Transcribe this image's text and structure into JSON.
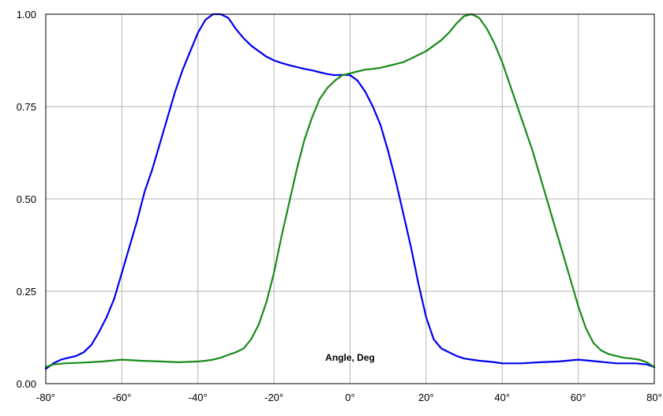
{
  "chart_data": {
    "type": "line",
    "xlabel": "Angle, Deg",
    "ylabel": "",
    "xlim": [
      -80,
      80
    ],
    "ylim": [
      0,
      1
    ],
    "x_ticks": [
      "-80°",
      "-60°",
      "-40°",
      "-20°",
      "0°",
      "20°",
      "40°",
      "60°",
      "80°"
    ],
    "x_tick_values": [
      -80,
      -60,
      -40,
      -20,
      0,
      20,
      40,
      60,
      80
    ],
    "y_ticks": [
      "0.00",
      "0.25",
      "0.50",
      "0.75",
      "1.00"
    ],
    "y_tick_values": [
      0,
      0.25,
      0.5,
      0.75,
      1
    ],
    "grid": true,
    "series": [
      {
        "color": "#0000ee",
        "x": [
          -80,
          -78,
          -76,
          -74,
          -72,
          -70,
          -68,
          -66,
          -64,
          -62,
          -60,
          -58,
          -56,
          -54,
          -52,
          -50,
          -48,
          -46,
          -44,
          -42,
          -40,
          -38,
          -36,
          -34,
          -32,
          -30,
          -28,
          -26,
          -24,
          -22,
          -20,
          -18,
          -16,
          -14,
          -12,
          -10,
          -8,
          -6,
          -4,
          -2,
          0,
          2,
          4,
          6,
          8,
          10,
          12,
          14,
          16,
          18,
          20,
          22,
          24,
          26,
          28,
          30,
          32,
          34,
          36,
          38,
          40,
          45,
          50,
          55,
          60,
          65,
          70,
          75,
          78,
          80
        ],
        "y": [
          0.04,
          0.055,
          0.065,
          0.07,
          0.075,
          0.085,
          0.105,
          0.14,
          0.18,
          0.23,
          0.3,
          0.37,
          0.44,
          0.52,
          0.58,
          0.65,
          0.72,
          0.79,
          0.85,
          0.9,
          0.95,
          0.985,
          1.0,
          1.0,
          0.99,
          0.96,
          0.935,
          0.915,
          0.9,
          0.885,
          0.875,
          0.868,
          0.862,
          0.857,
          0.852,
          0.848,
          0.843,
          0.838,
          0.835,
          0.836,
          0.835,
          0.82,
          0.79,
          0.75,
          0.7,
          0.63,
          0.55,
          0.46,
          0.37,
          0.27,
          0.18,
          0.12,
          0.095,
          0.085,
          0.075,
          0.068,
          0.065,
          0.062,
          0.06,
          0.058,
          0.055,
          0.055,
          0.058,
          0.06,
          0.065,
          0.06,
          0.055,
          0.055,
          0.052,
          0.045
        ]
      },
      {
        "color": "#1a8a1a",
        "x": [
          -80,
          -78,
          -75,
          -70,
          -65,
          -60,
          -55,
          -50,
          -45,
          -40,
          -38,
          -36,
          -34,
          -32,
          -30,
          -28,
          -26,
          -24,
          -22,
          -20,
          -18,
          -16,
          -14,
          -12,
          -10,
          -8,
          -6,
          -4,
          -2,
          0,
          2,
          4,
          6,
          8,
          10,
          12,
          14,
          16,
          18,
          20,
          22,
          24,
          26,
          28,
          30,
          32,
          34,
          36,
          38,
          40,
          42,
          44,
          46,
          48,
          50,
          52,
          54,
          56,
          58,
          60,
          62,
          64,
          66,
          68,
          70,
          72,
          74,
          76,
          78,
          80
        ],
        "y": [
          0.045,
          0.052,
          0.055,
          0.057,
          0.06,
          0.065,
          0.062,
          0.06,
          0.058,
          0.06,
          0.062,
          0.065,
          0.07,
          0.078,
          0.085,
          0.095,
          0.12,
          0.16,
          0.22,
          0.3,
          0.4,
          0.49,
          0.58,
          0.66,
          0.72,
          0.77,
          0.8,
          0.82,
          0.835,
          0.84,
          0.845,
          0.85,
          0.852,
          0.855,
          0.86,
          0.865,
          0.87,
          0.88,
          0.89,
          0.9,
          0.915,
          0.93,
          0.95,
          0.975,
          0.995,
          1.0,
          0.99,
          0.96,
          0.92,
          0.87,
          0.81,
          0.75,
          0.69,
          0.63,
          0.56,
          0.49,
          0.42,
          0.35,
          0.28,
          0.21,
          0.15,
          0.11,
          0.09,
          0.08,
          0.075,
          0.07,
          0.068,
          0.065,
          0.058,
          0.045
        ]
      }
    ]
  }
}
